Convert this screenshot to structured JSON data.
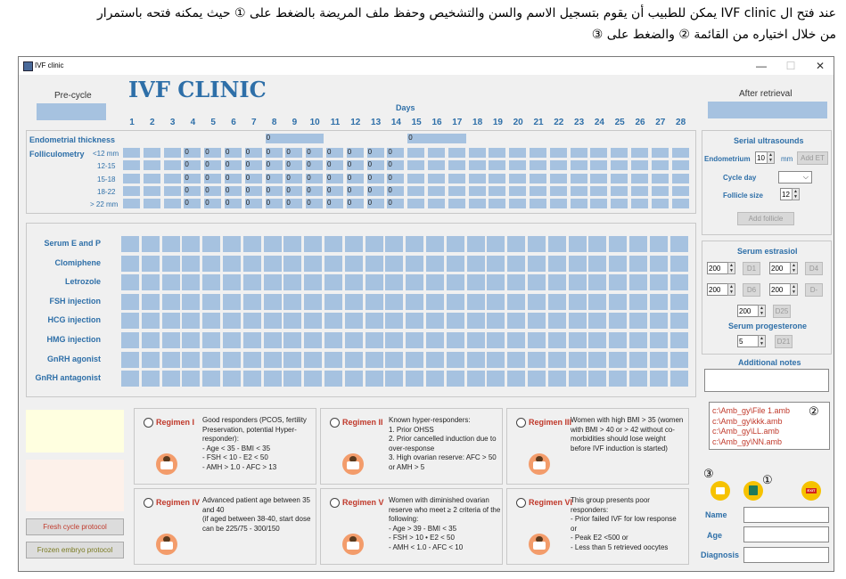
{
  "caption": {
    "line1": "عند فتح ال IVF clinic يمكن للطبيب أن يقوم بتسجيل الاسم والسن والتشخيص وحفظ ملف المريضة بالضغط على ① حيث يمكنه فتحه باستمرار",
    "line2": "من خلال اختياره من القائمة ② والضغط على ③"
  },
  "window": {
    "title": "IVF clinic",
    "min": "—",
    "max": "☐",
    "close": "✕"
  },
  "header": {
    "app_title": "IVF CLINIC",
    "pre_cycle": "Pre-cycle",
    "after_retrieval": "After retrieval",
    "days_label": "Days",
    "days": [
      "1",
      "2",
      "3",
      "4",
      "5",
      "6",
      "7",
      "8",
      "9",
      "10",
      "11",
      "12",
      "13",
      "14",
      "15",
      "16",
      "17",
      "18",
      "19",
      "20",
      "21",
      "22",
      "23",
      "24",
      "25",
      "26",
      "27",
      "28"
    ]
  },
  "ultrasound_rows": {
    "endometrial": "Endometrial thickness",
    "folliculometry": "Folliculometry",
    "sizes": [
      "<12 mm",
      "12-15",
      "15-18",
      "18-22",
      "> 22 mm"
    ],
    "zero": "0"
  },
  "drug_rows": [
    "Serum E and P",
    "Clomiphene",
    "Letrozole",
    "FSH injection",
    "HCG injection",
    "HMG injection",
    "GnRH agonist",
    "GnRH antagonist"
  ],
  "serial_us": {
    "title": "Serial ultrasounds",
    "endometrium_label": "Endometrium",
    "endometrium_value": "10",
    "mm": "mm",
    "add_et": "Add ET",
    "cycle_day": "Cycle day",
    "follicle_size": "Follicle size",
    "follicle_value": "12",
    "add_follicle": "Add follicle"
  },
  "serum_estradiol": {
    "title": "Serum estrasiol",
    "rows": [
      [
        {
          "value": "200",
          "btn": "D1"
        },
        {
          "value": "200",
          "btn": "D4"
        }
      ],
      [
        {
          "value": "200",
          "btn": "D6"
        },
        {
          "value": "200",
          "btn": "D-"
        }
      ]
    ],
    "single": {
      "value": "200",
      "btn": "D25"
    }
  },
  "serum_progesterone": {
    "title": "Serum progesterone",
    "value": "5",
    "btn": "D21"
  },
  "additional_notes": "Additional notes",
  "files": [
    "c:\\Amb_gy\\File 1.amb",
    "c:\\Amb_gy\\kkk.amb",
    "c:\\Amb_gy\\LL.amb",
    "c:\\Amb_gy\\NN.amb"
  ],
  "markers": {
    "one": "①",
    "two": "②",
    "three": "③"
  },
  "buttons": {
    "exit": "EXIT"
  },
  "patient": {
    "name": "Name",
    "age": "Age",
    "diagnosis": "Diagnosis"
  },
  "protocols": {
    "fresh": "Fresh cycle protocol",
    "frozen": "Frozen embryo protocol"
  },
  "regimens": [
    {
      "title": "Regimen I",
      "desc": "Good responders (PCOS, fertility Preservation, potential Hyper-responder):\n- Age < 35   - BMI < 35\n- FSH < 10      - E2 < 50\n- AMH > 1.0    - AFC > 13"
    },
    {
      "title": "Regimen II",
      "desc": "Known hyper-responders:\n1. Prior OHSS\n2. Prior cancelled induction due to over-response\n3. High ovarian reserve: AFC > 50 or AMH > 5"
    },
    {
      "title": "Regimen III",
      "desc": "Women with high BMI > 35 (women with BMI > 40 or > 42 without co-morbidities should lose weight before IVF induction is started)"
    },
    {
      "title": "Regimen IV",
      "desc": "Advanced patient age between 35 and 40\n(if aged between 38-40, start dose can be 225/75 - 300/150"
    },
    {
      "title": "Regimen V",
      "desc": "Women with diminished ovarian reserve who meet ≥ 2 criteria of the following:\n- Age > 39   - BMI < 35\n- FSH > 10 • E2 < 50\n- AMH < 1.0  - AFC < 10"
    },
    {
      "title": "Regimen VI",
      "desc": "This group presents poor responders:\n- Prior failed IVF for low response or\n- Peak E2 <500 or\n- Less than 5 retrieved oocytes"
    }
  ],
  "colors": {
    "accent": "#2e6fa8",
    "cell": "#a6c2e0",
    "regimen_title": "#c0392b",
    "note_yellow": "#ffffe0",
    "note_pink": "#fdf1ea"
  }
}
